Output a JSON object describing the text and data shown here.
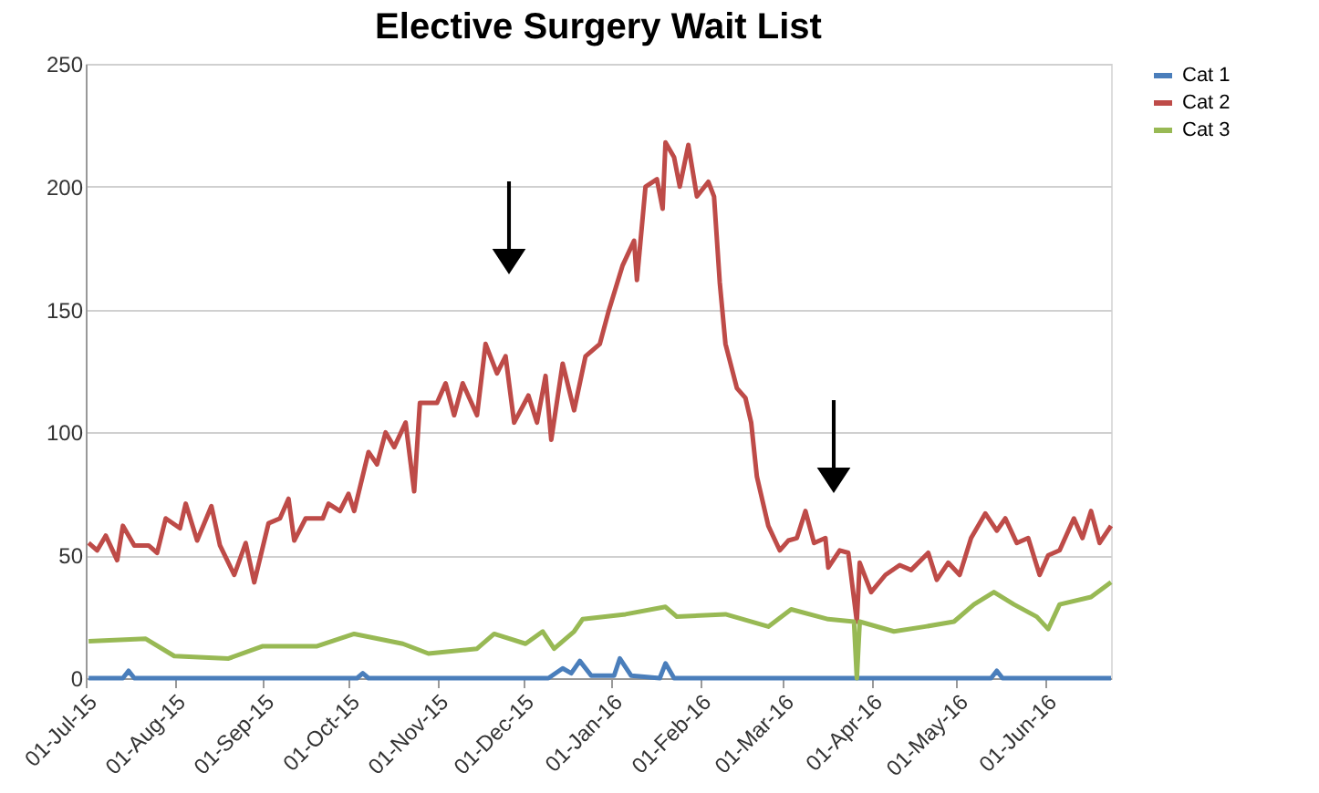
{
  "chart_data": {
    "type": "line",
    "title": "Elective Surgery Wait List",
    "xlim": [
      "2015-07-01",
      "2016-06-24"
    ],
    "xticks": [
      {
        "value": "2015-07-01",
        "label": "01-Jul-15"
      },
      {
        "value": "2015-08-01",
        "label": "01-Aug-15"
      },
      {
        "value": "2015-09-01",
        "label": "01-Sep-15"
      },
      {
        "value": "2015-10-01",
        "label": "01-Oct-15"
      },
      {
        "value": "2015-11-01",
        "label": "01-Nov-15"
      },
      {
        "value": "2015-12-01",
        "label": "01-Dec-15"
      },
      {
        "value": "2016-01-01",
        "label": "01-Jan-16"
      },
      {
        "value": "2016-02-01",
        "label": "01-Feb-16"
      },
      {
        "value": "2016-03-01",
        "label": "01-Mar-16"
      },
      {
        "value": "2016-04-01",
        "label": "01-Apr-16"
      },
      {
        "value": "2016-05-01",
        "label": "01-May-16"
      },
      {
        "value": "2016-06-01",
        "label": "01-Jun-16"
      }
    ],
    "ylim": [
      0,
      250
    ],
    "yticks": [
      0,
      50,
      100,
      150,
      200,
      250
    ],
    "grid": "y",
    "legend": "right",
    "marker": "none",
    "line_style": "solid",
    "series": [
      {
        "name": "Cat 1",
        "color": "#4a7ebb",
        "x": [
          "2015-07-02",
          "2015-07-14",
          "2015-07-16",
          "2015-07-18",
          "2015-10-04",
          "2015-10-06",
          "2015-10-08",
          "2015-12-10",
          "2015-12-15",
          "2015-12-18",
          "2015-12-21",
          "2015-12-25",
          "2016-01-02",
          "2016-01-04",
          "2016-01-08",
          "2016-01-18",
          "2016-01-20",
          "2016-01-23",
          "2016-05-13",
          "2016-05-15",
          "2016-05-17",
          "2016-06-24"
        ],
        "values": [
          0,
          0,
          3,
          0,
          0,
          2,
          0,
          0,
          4,
          2,
          7,
          1,
          1,
          8,
          1,
          0,
          6,
          0,
          0,
          3,
          0,
          0
        ]
      },
      {
        "name": "Cat 2",
        "color": "#be4b48",
        "x": [
          "2015-07-02",
          "2015-07-05",
          "2015-07-08",
          "2015-07-12",
          "2015-07-14",
          "2015-07-18",
          "2015-07-23",
          "2015-07-26",
          "2015-07-29",
          "2015-08-03",
          "2015-08-05",
          "2015-08-09",
          "2015-08-14",
          "2015-08-17",
          "2015-08-22",
          "2015-08-26",
          "2015-08-29",
          "2015-09-03",
          "2015-09-07",
          "2015-09-10",
          "2015-09-12",
          "2015-09-16",
          "2015-09-22",
          "2015-09-24",
          "2015-09-28",
          "2015-10-01",
          "2015-10-03",
          "2015-10-08",
          "2015-10-11",
          "2015-10-14",
          "2015-10-17",
          "2015-10-21",
          "2015-10-24",
          "2015-10-26",
          "2015-11-01",
          "2015-11-04",
          "2015-11-07",
          "2015-11-10",
          "2015-11-15",
          "2015-11-18",
          "2015-11-22",
          "2015-11-25",
          "2015-11-28",
          "2015-12-03",
          "2015-12-06",
          "2015-12-09",
          "2015-12-11",
          "2015-12-15",
          "2015-12-19",
          "2015-12-23",
          "2015-12-28",
          "2015-12-31",
          "2016-01-05",
          "2016-01-09",
          "2016-01-10",
          "2016-01-13",
          "2016-01-17",
          "2016-01-19",
          "2016-01-20",
          "2016-01-23",
          "2016-01-25",
          "2016-01-28",
          "2016-01-31",
          "2016-02-04",
          "2016-02-06",
          "2016-02-08",
          "2016-02-10",
          "2016-02-14",
          "2016-02-17",
          "2016-02-19",
          "2016-02-21",
          "2016-02-25",
          "2016-02-29",
          "2016-03-03",
          "2016-03-06",
          "2016-03-09",
          "2016-03-12",
          "2016-03-16",
          "2016-03-17",
          "2016-03-21",
          "2016-03-24",
          "2016-03-27",
          "2016-03-28",
          "2016-04-01",
          "2016-04-06",
          "2016-04-11",
          "2016-04-15",
          "2016-04-21",
          "2016-04-24",
          "2016-04-28",
          "2016-05-02",
          "2016-05-06",
          "2016-05-11",
          "2016-05-15",
          "2016-05-18",
          "2016-05-22",
          "2016-05-26",
          "2016-05-30",
          "2016-06-02",
          "2016-06-06",
          "2016-06-11",
          "2016-06-14",
          "2016-06-17",
          "2016-06-20",
          "2016-06-24"
        ],
        "values": [
          55,
          52,
          58,
          48,
          62,
          54,
          54,
          51,
          65,
          61,
          71,
          56,
          70,
          54,
          42,
          55,
          39,
          63,
          65,
          73,
          56,
          65,
          65,
          71,
          68,
          75,
          68,
          92,
          87,
          100,
          94,
          104,
          76,
          112,
          112,
          120,
          107,
          120,
          107,
          136,
          124,
          131,
          104,
          115,
          104,
          123,
          97,
          128,
          109,
          131,
          136,
          149,
          168,
          178,
          162,
          200,
          203,
          191,
          218,
          212,
          200,
          217,
          196,
          202,
          196,
          161,
          136,
          118,
          114,
          104,
          82,
          62,
          52,
          56,
          57,
          68,
          55,
          57,
          45,
          52,
          51,
          23,
          47,
          35,
          42,
          46,
          44,
          51,
          40,
          47,
          42,
          57,
          67,
          60,
          65,
          55,
          57,
          42,
          50,
          52,
          65,
          57,
          68,
          55,
          62
        ]
      },
      {
        "name": "Cat 3",
        "color": "#98b954",
        "x": [
          "2015-07-02",
          "2015-07-22",
          "2015-08-01",
          "2015-08-20",
          "2015-09-01",
          "2015-09-20",
          "2015-10-03",
          "2015-10-20",
          "2015-10-29",
          "2015-11-15",
          "2015-11-21",
          "2015-12-02",
          "2015-12-08",
          "2015-12-12",
          "2015-12-19",
          "2015-12-22",
          "2016-01-06",
          "2016-01-20",
          "2016-01-24",
          "2016-02-10",
          "2016-02-25",
          "2016-03-04",
          "2016-03-17",
          "2016-03-26",
          "2016-03-27",
          "2016-03-28",
          "2016-04-09",
          "2016-04-20",
          "2016-04-30",
          "2016-05-07",
          "2016-05-14",
          "2016-05-21",
          "2016-05-29",
          "2016-06-02",
          "2016-06-06",
          "2016-06-17",
          "2016-06-24"
        ],
        "values": [
          15,
          16,
          9,
          8,
          13,
          13,
          18,
          14,
          10,
          12,
          18,
          14,
          19,
          12,
          19,
          24,
          26,
          29,
          25,
          26,
          21,
          28,
          24,
          23,
          0,
          23,
          19,
          21,
          23,
          30,
          35,
          30,
          25,
          20,
          30,
          33,
          39
        ]
      }
    ]
  }
}
